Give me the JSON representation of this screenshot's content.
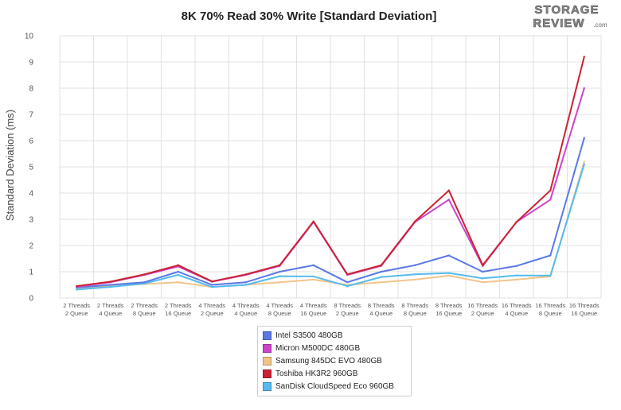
{
  "logo": {
    "line1": "STORAGE",
    "line2": "REVIEW",
    "suffix": ".com"
  },
  "chart_data": {
    "type": "line",
    "title": "8K 70% Read 30% Write [Standard Deviation]",
    "ylabel": "Standard Deviation (ms)",
    "xlabel": "",
    "ylim": [
      0,
      10
    ],
    "yticks": [
      0,
      1,
      2,
      3,
      4,
      5,
      6,
      7,
      8,
      9,
      10
    ],
    "grid": true,
    "legend_position": "bottom-center",
    "categories": [
      [
        "2 Threads",
        "2 Queue"
      ],
      [
        "2 Threads",
        "4 Queue"
      ],
      [
        "2 Threads",
        "8 Queue"
      ],
      [
        "2 Threads",
        "16 Queue"
      ],
      [
        "4 Threads",
        "2 Queue"
      ],
      [
        "4 Threads",
        "4 Queue"
      ],
      [
        "4 Threads",
        "8 Queue"
      ],
      [
        "4 Threads",
        "16 Queue"
      ],
      [
        "8 Threads",
        "2 Queue"
      ],
      [
        "8 Threads",
        "4 Queue"
      ],
      [
        "8 Threads",
        "8 Queue"
      ],
      [
        "8 Threads",
        "16 Queue"
      ],
      [
        "16 Threads",
        "2 Queue"
      ],
      [
        "16 Threads",
        "4 Queue"
      ],
      [
        "16 Threads",
        "8 Queue"
      ],
      [
        "16 Threads",
        "16 Queue"
      ]
    ],
    "series": [
      {
        "name": "Intel S3500 480GB",
        "color": "#5b78e6",
        "values": [
          0.4,
          0.5,
          0.6,
          1.0,
          0.5,
          0.6,
          1.0,
          1.25,
          0.6,
          1.0,
          1.25,
          1.62,
          1.0,
          1.22,
          1.62,
          6.1
        ]
      },
      {
        "name": "Micron M500DC 480GB",
        "color": "#cc44cc",
        "values": [
          0.43,
          0.6,
          0.88,
          1.2,
          0.62,
          0.88,
          1.22,
          2.9,
          0.88,
          1.22,
          2.9,
          3.75,
          1.22,
          2.9,
          3.75,
          8.0
        ]
      },
      {
        "name": "Samsung 845DC EVO 480GB",
        "color": "#f2c48a",
        "values": [
          0.38,
          0.45,
          0.53,
          0.6,
          0.42,
          0.5,
          0.6,
          0.7,
          0.5,
          0.6,
          0.7,
          0.85,
          0.6,
          0.7,
          0.82,
          5.2
        ]
      },
      {
        "name": "Toshiba HK3R2 960GB",
        "color": "#cc2233",
        "values": [
          0.45,
          0.62,
          0.9,
          1.25,
          0.63,
          0.9,
          1.25,
          2.92,
          0.9,
          1.25,
          2.92,
          4.1,
          1.25,
          2.9,
          4.1,
          9.2
        ]
      },
      {
        "name": "SanDisk CloudSpeed Eco 960GB",
        "color": "#55bbee",
        "values": [
          0.32,
          0.42,
          0.55,
          0.88,
          0.42,
          0.5,
          0.83,
          0.82,
          0.45,
          0.8,
          0.9,
          0.95,
          0.75,
          0.86,
          0.85,
          5.1
        ]
      }
    ]
  }
}
